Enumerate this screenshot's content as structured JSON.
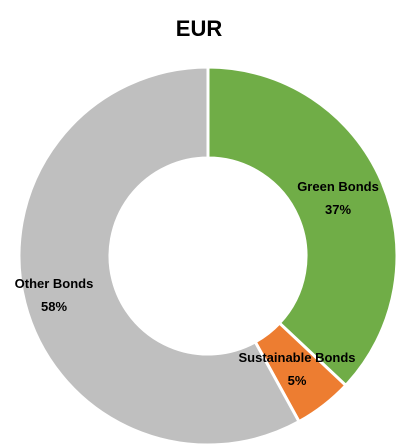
{
  "chart_data": {
    "type": "pie",
    "title": "EUR",
    "series": [
      {
        "name": "Green Bonds",
        "value": 37,
        "label": "37%",
        "color": "#70ad47"
      },
      {
        "name": "Sustainable Bonds",
        "value": 5,
        "label": "5%",
        "color": "#ed7d31"
      },
      {
        "name": "Other Bonds",
        "value": 58,
        "label": "58%",
        "color": "#bfbfbf"
      }
    ]
  }
}
